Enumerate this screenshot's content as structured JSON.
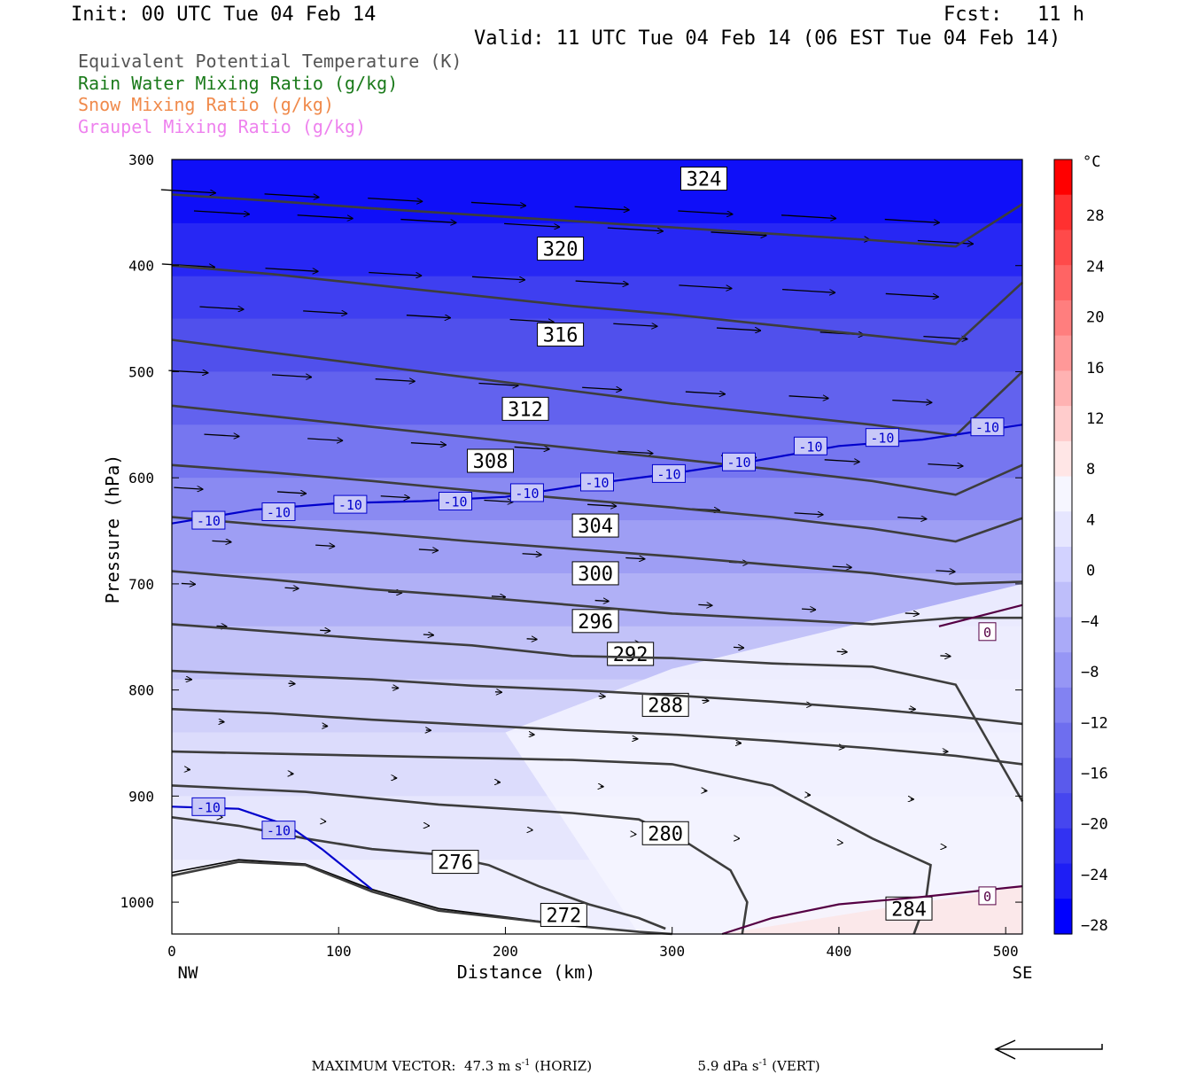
{
  "header": {
    "init": "Init: 00 UTC Tue 04 Feb 14",
    "fcst": "Fcst:   11 h",
    "valid": "Valid: 11 UTC Tue 04 Feb 14 (06 EST Tue 04 Feb 14)"
  },
  "legend": [
    {
      "label": "Equivalent Potential Temperature (K)",
      "color": "#555555"
    },
    {
      "label": "Rain Water Mixing Ratio (g/kg)",
      "color": "#1a7a1a"
    },
    {
      "label": "Snow Mixing Ratio (g/kg)",
      "color": "#f08a4b"
    },
    {
      "label": "Graupel Mixing Ratio (g/kg)",
      "color": "#ee82ee"
    }
  ],
  "footer": {
    "max_label": "MAXIMUM VECTOR:",
    "horiz_value": "47.3 m s",
    "horiz_exp": "-1",
    "horiz_unit": "(HORIZ)",
    "vert_value": "5.9 dPa s",
    "vert_exp": "-1",
    "vert_unit": "(VERT)"
  },
  "chart_data": {
    "type": "cross-section",
    "xlabel": "Distance (km)",
    "ylabel": "Pressure (hPa)",
    "xlim": [
      0,
      510
    ],
    "ylim": [
      1030,
      300
    ],
    "x_ticks": [
      0,
      100,
      200,
      300,
      400,
      500
    ],
    "y_ticks": [
      300,
      400,
      500,
      600,
      700,
      800,
      900,
      1000
    ],
    "x_end_labels": {
      "left": "NW",
      "right": "SE"
    },
    "colorbar": {
      "unit": "°C",
      "labels": [
        28,
        24,
        20,
        16,
        12,
        8,
        4,
        0,
        -4,
        -8,
        -12,
        -16,
        -20,
        -24,
        -28
      ],
      "colors": [
        "#ff0000",
        "#ff3030",
        "#ff4a4a",
        "#ff6464",
        "#ff7e7e",
        "#ff9898",
        "#ffb2b2",
        "#ffcccc",
        "#ffe6e6",
        "#f6f6ff",
        "#e6e6ff",
        "#d2d2ff",
        "#bebefa",
        "#aaaaf8",
        "#9696f5",
        "#8282f2",
        "#6e6eef",
        "#5a5aec",
        "#4646ef",
        "#3232f2",
        "#1e1ef5",
        "#0000ff"
      ]
    },
    "theta_e_isentropes": [
      {
        "label": "272",
        "points": [
          [
            0,
            975
          ],
          [
            40,
            962
          ],
          [
            80,
            965
          ],
          [
            120,
            990
          ],
          [
            160,
            1008
          ],
          [
            200,
            1015
          ],
          [
            240,
            1022
          ],
          [
            280,
            1028
          ],
          [
            300,
            1030
          ]
        ],
        "label_at": [
          235,
          1012
        ]
      },
      {
        "label": "276",
        "points": [
          [
            0,
            920
          ],
          [
            40,
            928
          ],
          [
            80,
            940
          ],
          [
            120,
            950
          ],
          [
            160,
            955
          ],
          [
            190,
            965
          ],
          [
            220,
            985
          ],
          [
            250,
            1002
          ],
          [
            280,
            1015
          ],
          [
            296,
            1025
          ]
        ],
        "label_at": [
          170,
          962
        ]
      },
      {
        "label": "280",
        "points": [
          [
            0,
            890
          ],
          [
            40,
            893
          ],
          [
            80,
            896
          ],
          [
            120,
            902
          ],
          [
            160,
            908
          ],
          [
            200,
            912
          ],
          [
            240,
            916
          ],
          [
            280,
            922
          ],
          [
            310,
            945
          ],
          [
            335,
            970
          ],
          [
            345,
            1000
          ],
          [
            342,
            1030
          ]
        ],
        "label_at": [
          296,
          935
        ]
      },
      {
        "label": "284",
        "points": [
          [
            0,
            858
          ],
          [
            60,
            860
          ],
          [
            120,
            862
          ],
          [
            180,
            864
          ],
          [
            240,
            866
          ],
          [
            300,
            870
          ],
          [
            360,
            890
          ],
          [
            420,
            940
          ],
          [
            455,
            965
          ],
          [
            452,
            1000
          ],
          [
            445,
            1030
          ]
        ],
        "label_at": [
          442,
          1006
        ]
      },
      {
        "label": "288",
        "points": [
          [
            0,
            818
          ],
          [
            60,
            822
          ],
          [
            120,
            828
          ],
          [
            180,
            833
          ],
          [
            240,
            838
          ],
          [
            300,
            842
          ],
          [
            360,
            848
          ],
          [
            420,
            855
          ],
          [
            470,
            862
          ],
          [
            510,
            870
          ]
        ],
        "label_at": [
          296,
          814
        ]
      },
      {
        "label": "292",
        "points": [
          [
            0,
            782
          ],
          [
            60,
            786
          ],
          [
            120,
            790
          ],
          [
            180,
            796
          ],
          [
            240,
            800
          ],
          [
            300,
            805
          ],
          [
            360,
            811
          ],
          [
            420,
            818
          ],
          [
            470,
            825
          ],
          [
            510,
            832
          ]
        ],
        "label_at": [
          275,
          766
        ]
      },
      {
        "label": "296",
        "points": [
          [
            0,
            738
          ],
          [
            60,
            745
          ],
          [
            120,
            752
          ],
          [
            180,
            758
          ],
          [
            240,
            768
          ],
          [
            300,
            770
          ],
          [
            360,
            775
          ],
          [
            420,
            778
          ],
          [
            470,
            795
          ],
          [
            510,
            905
          ]
        ],
        "label_at": [
          254,
          735
        ]
      },
      {
        "label": "300",
        "points": [
          [
            0,
            688
          ],
          [
            60,
            696
          ],
          [
            120,
            705
          ],
          [
            180,
            712
          ],
          [
            240,
            720
          ],
          [
            300,
            728
          ],
          [
            360,
            733
          ],
          [
            420,
            738
          ],
          [
            470,
            732
          ],
          [
            510,
            732
          ]
        ],
        "label_at": [
          254,
          690
        ]
      },
      {
        "label": "304",
        "points": [
          [
            0,
            637
          ],
          [
            60,
            645
          ],
          [
            120,
            652
          ],
          [
            180,
            660
          ],
          [
            240,
            667
          ],
          [
            300,
            674
          ],
          [
            360,
            682
          ],
          [
            420,
            690
          ],
          [
            470,
            700
          ],
          [
            510,
            698
          ]
        ],
        "label_at": [
          254,
          645
        ]
      },
      {
        "label": "308",
        "points": [
          [
            0,
            588
          ],
          [
            60,
            595
          ],
          [
            120,
            603
          ],
          [
            180,
            612
          ],
          [
            240,
            620
          ],
          [
            300,
            628
          ],
          [
            360,
            637
          ],
          [
            420,
            648
          ],
          [
            470,
            660
          ],
          [
            510,
            638
          ]
        ],
        "label_at": [
          191,
          584
        ]
      },
      {
        "label": "312",
        "points": [
          [
            0,
            532
          ],
          [
            60,
            542
          ],
          [
            120,
            552
          ],
          [
            180,
            562
          ],
          [
            240,
            572
          ],
          [
            300,
            582
          ],
          [
            360,
            592
          ],
          [
            420,
            603
          ],
          [
            470,
            616
          ],
          [
            510,
            588
          ]
        ],
        "label_at": [
          212,
          535
        ]
      },
      {
        "label": "316",
        "points": [
          [
            0,
            470
          ],
          [
            60,
            482
          ],
          [
            120,
            494
          ],
          [
            180,
            506
          ],
          [
            240,
            518
          ],
          [
            300,
            530
          ],
          [
            360,
            540
          ],
          [
            420,
            550
          ],
          [
            470,
            560
          ],
          [
            510,
            500
          ]
        ],
        "label_at": [
          233,
          465
        ]
      },
      {
        "label": "320",
        "points": [
          [
            0,
            400
          ],
          [
            60,
            408
          ],
          [
            120,
            418
          ],
          [
            180,
            428
          ],
          [
            240,
            438
          ],
          [
            300,
            446
          ],
          [
            360,
            456
          ],
          [
            420,
            466
          ],
          [
            470,
            474
          ],
          [
            510,
            416
          ]
        ],
        "label_at": [
          233,
          384
        ]
      },
      {
        "label": "324",
        "points": [
          [
            0,
            333
          ],
          [
            60,
            339
          ],
          [
            120,
            346
          ],
          [
            180,
            352
          ],
          [
            240,
            358
          ],
          [
            300,
            364
          ],
          [
            360,
            370
          ],
          [
            420,
            376
          ],
          [
            470,
            382
          ],
          [
            510,
            342
          ]
        ],
        "label_at": [
          319,
          318
        ]
      }
    ],
    "isotherms": [
      {
        "label": "-10",
        "color": "#0000cc",
        "points": [
          [
            0,
            643
          ],
          [
            50,
            630
          ],
          [
            100,
            624
          ],
          [
            150,
            622
          ],
          [
            200,
            618
          ],
          [
            250,
            606
          ],
          [
            300,
            596
          ],
          [
            350,
            584
          ],
          [
            400,
            570
          ],
          [
            450,
            564
          ],
          [
            510,
            550
          ]
        ],
        "label_at": [
          [
            22,
            640
          ],
          [
            64,
            632
          ],
          [
            107,
            625
          ],
          [
            170,
            622
          ],
          [
            213,
            614
          ],
          [
            255,
            604
          ],
          [
            298,
            596
          ],
          [
            340,
            585
          ],
          [
            383,
            570
          ],
          [
            426,
            562
          ],
          [
            489,
            552
          ]
        ]
      },
      {
        "label": "-10",
        "color": "#0000cc",
        "points": [
          [
            0,
            910
          ],
          [
            40,
            912
          ],
          [
            70,
            928
          ],
          [
            90,
            950
          ],
          [
            120,
            988
          ]
        ],
        "label_at": [
          [
            22,
            910
          ],
          [
            64,
            932
          ]
        ]
      },
      {
        "label": "0",
        "color": "#550044",
        "points": [
          [
            460,
            740
          ],
          [
            490,
            728
          ],
          [
            510,
            720
          ]
        ],
        "label_at": [
          [
            489,
            745
          ]
        ]
      },
      {
        "label": "0",
        "color": "#550044",
        "points": [
          [
            330,
            1030
          ],
          [
            360,
            1015
          ],
          [
            400,
            1002
          ],
          [
            450,
            995
          ],
          [
            510,
            985
          ]
        ],
        "label_at": [
          [
            489,
            994
          ]
        ]
      }
    ],
    "wind_vectors_note": "horizontal wind arrows pointing left-to-right, decreasing with depth",
    "wind_vectors": [
      [
        [
          0,
          330
        ],
        [
          62,
          350
        ],
        [
          125,
          370
        ],
        [
          187,
          390
        ],
        [
          250,
          410
        ],
        [
          312,
          430
        ],
        [
          375,
          450
        ],
        [
          437,
          470
        ],
        [
          487,
          490
        ]
      ],
      [
        [
          0,
          410
        ],
        [
          62,
          400
        ],
        [
          125,
          405
        ],
        [
          187,
          410
        ],
        [
          250,
          415
        ],
        [
          312,
          420
        ],
        [
          375,
          425
        ],
        [
          437,
          430
        ],
        [
          487,
          436
        ]
      ]
    ]
  }
}
